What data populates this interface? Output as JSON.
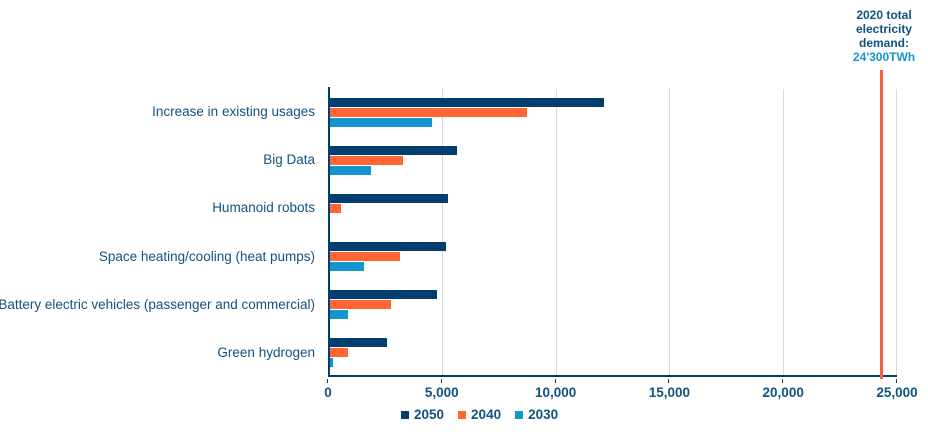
{
  "annotation": {
    "label_lines": [
      "2020 total",
      "electricity",
      "demand:"
    ],
    "value": "24'300TWh",
    "x_value": 24300,
    "label_color": "#11527E",
    "value_color": "#1496CC",
    "line_color": "#F2613D"
  },
  "chart_data": {
    "type": "bar",
    "orientation": "horizontal",
    "title": "",
    "xlabel": "",
    "ylabel": "",
    "categories": [
      "Increase in existing usages",
      "Big Data",
      "Humanoid robots",
      "Space heating/cooling (heat pumps)",
      "Battery electric vehicles (passenger and commercial)",
      "Green hydrogen"
    ],
    "series": [
      {
        "name": "2050",
        "color": "#003E70",
        "values": [
          12100,
          5600,
          5200,
          5100,
          4700,
          2500
        ]
      },
      {
        "name": "2040",
        "color": "#FF6633",
        "values": [
          8700,
          3200,
          500,
          3100,
          2700,
          800
        ]
      },
      {
        "name": "2030",
        "color": "#1496CC",
        "values": [
          4500,
          1800,
          0,
          1500,
          800,
          150
        ]
      }
    ],
    "xlim": [
      0,
      25000
    ],
    "x_ticks": [
      {
        "value": 0,
        "label": "0"
      },
      {
        "value": 5000,
        "label": "5,000"
      },
      {
        "value": 10000,
        "label": "10,000"
      },
      {
        "value": 15000,
        "label": "15,000"
      },
      {
        "value": 20000,
        "label": "20,000"
      },
      {
        "value": 25000,
        "label": "25,000"
      }
    ],
    "grid": "vertical",
    "legend_position": "bottom",
    "legend": [
      "2050",
      "2040",
      "2030"
    ]
  },
  "colors": {
    "axis": "#003E70",
    "gridline": "#D9D9D9",
    "text": "#11527E",
    "background": "#FFFFFF"
  }
}
